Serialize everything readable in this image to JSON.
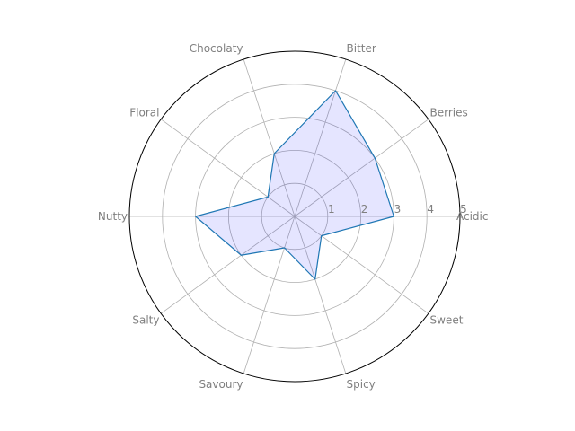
{
  "chart_data": {
    "type": "radar",
    "title": "",
    "categories": [
      "Acidic",
      "Berries",
      "Bitter",
      "Chocolaty",
      "Floral",
      "Nutty",
      "Salty",
      "Savoury",
      "Spicy",
      "Sweet"
    ],
    "series": [
      {
        "name": "",
        "values": [
          3,
          3,
          4,
          2,
          1,
          3,
          2,
          1,
          2,
          1
        ],
        "line_color": "#1f77b4",
        "fill_color": "#0000ff",
        "fill_opacity": 0.1
      }
    ],
    "rlim": [
      0,
      5
    ],
    "rticks": [
      "1",
      "2",
      "3",
      "4",
      "5"
    ],
    "grid": true,
    "start_angle_deg": 0,
    "direction": "counterclockwise"
  }
}
